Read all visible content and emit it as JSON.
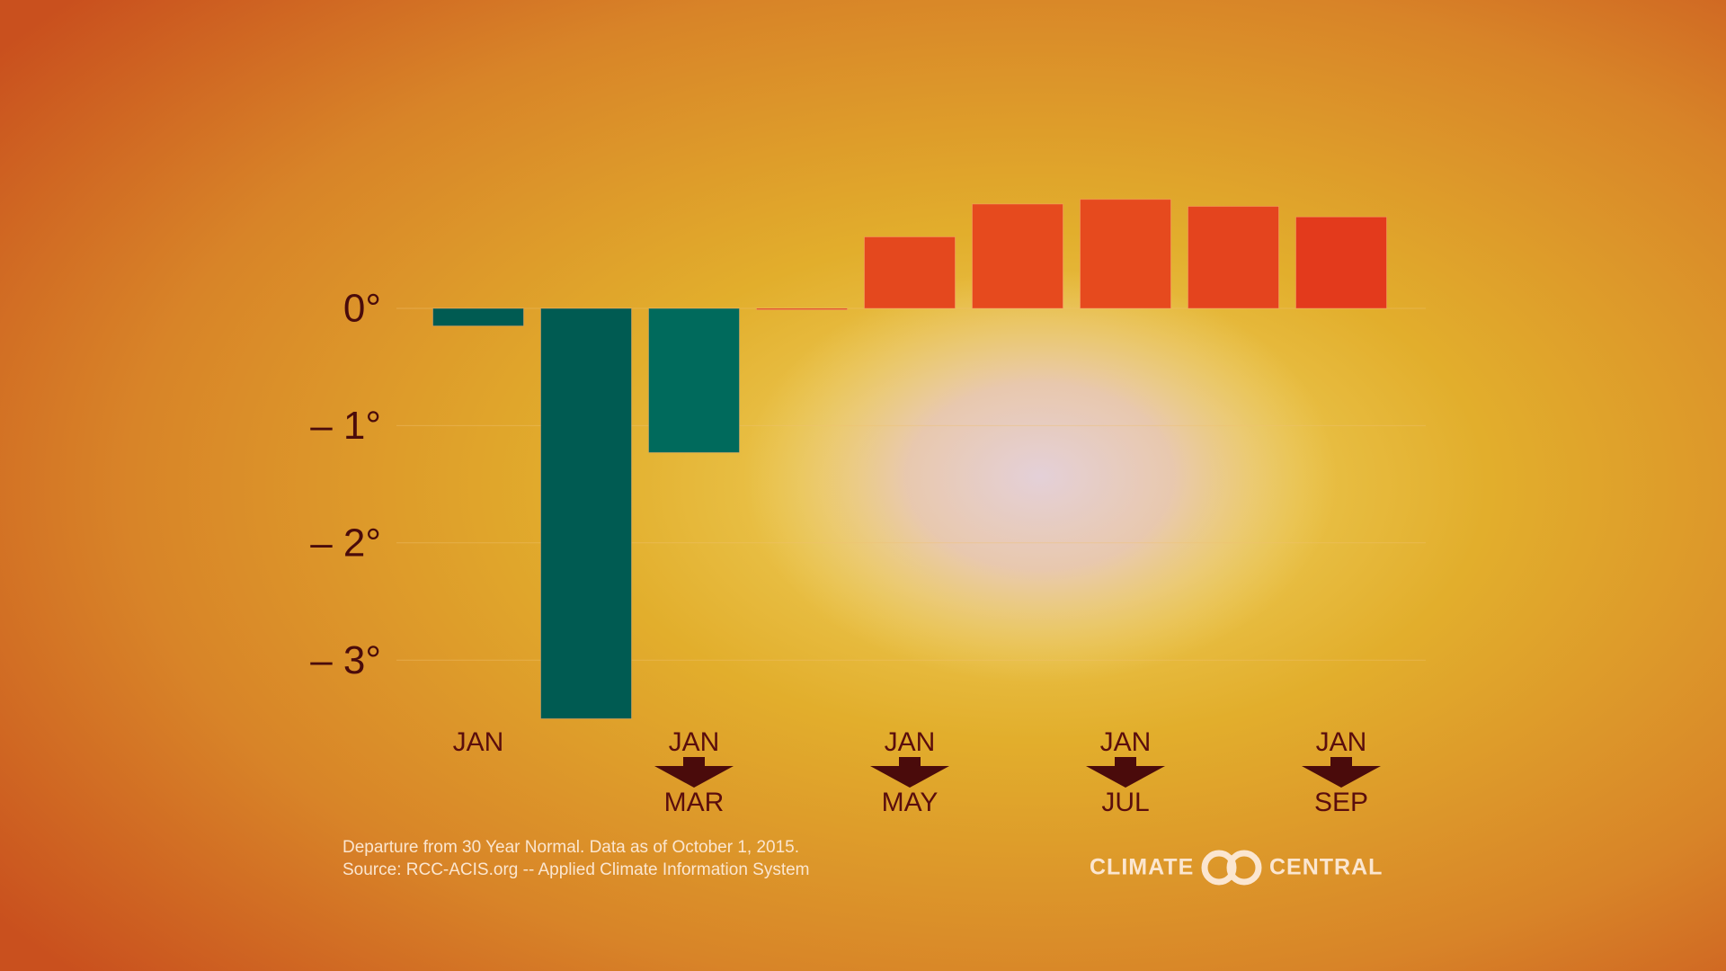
{
  "chart_data": {
    "type": "bar",
    "categories": [
      [
        "JAN"
      ],
      null,
      [
        "JAN",
        "MAR"
      ],
      null,
      [
        "JAN",
        "MAY"
      ],
      null,
      [
        "JAN",
        "JUL"
      ],
      null,
      [
        "JAN",
        "SEP"
      ]
    ],
    "values": [
      -0.15,
      -3.5,
      -1.23,
      0,
      0.61,
      0.89,
      0.93,
      0.87,
      0.78
    ],
    "colors": [
      "#005b52",
      "#005b52",
      "#006a5c",
      "#d8401c",
      "#e4481e",
      "#e64a1e",
      "#e64a1e",
      "#e4441e",
      "#e33a1c"
    ],
    "ylim": [
      -3.5,
      1
    ],
    "yticks": [
      {
        "value": 0,
        "label": "0°"
      },
      {
        "value": -1,
        "label": "– 1°"
      },
      {
        "value": -2,
        "label": "– 2°"
      },
      {
        "value": -3,
        "label": "– 3°"
      }
    ],
    "grid": true,
    "notes": [
      "Departure from 30 Year Normal. Data as of October 1, 2015.",
      "Source: RCC-ACIS.org -- Applied Climate Information System"
    ],
    "logo": [
      "CLIMATE",
      "CENTRAL"
    ]
  }
}
